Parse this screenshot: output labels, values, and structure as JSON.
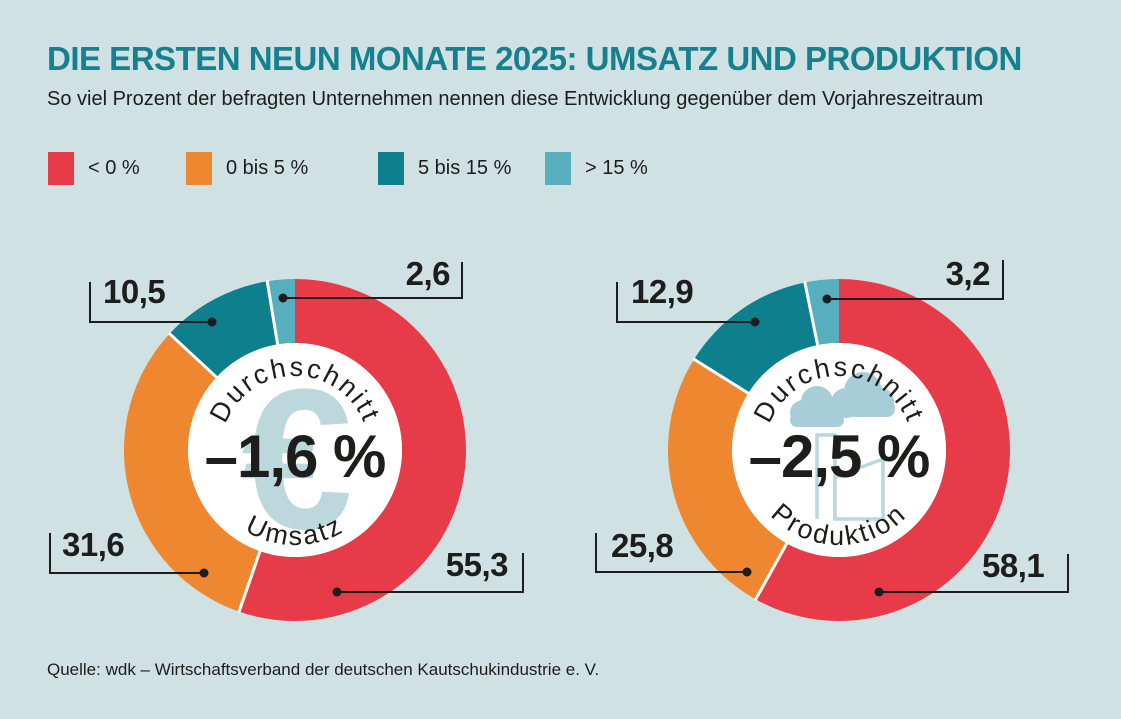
{
  "title": "DIE ERSTEN NEUN MONATE 2025: UMSATZ UND PRODUKTION",
  "subtitle": "So viel Prozent der befragten Unternehmen nennen diese Entwicklung gegenüber dem Vorjahreszeitraum",
  "source": "Quelle: wdk – Wirtschaftsverband der deutschen Kautschukindustrie e. V.",
  "colors": {
    "background": "#cfe1e3",
    "title": "#17808e",
    "text": "#1d1d1b",
    "euro_icon": "#bdd8dc",
    "cloud_fill": "#a7ced8",
    "factory_stroke": "#b9d8de"
  },
  "legend": [
    {
      "label": "< 0 %",
      "color": "#e83b49"
    },
    {
      "label": "0 bis 5 %",
      "color": "#ef8730"
    },
    {
      "label": "5 bis 15 %",
      "color": "#0e7f8c"
    },
    {
      "label": "> 15 %",
      "color": "#57aebc"
    }
  ],
  "chart_data": [
    {
      "type": "donut",
      "name": "Umsatz",
      "units": "%",
      "start_angle_deg": 0,
      "direction": "clockwise",
      "categories": [
        "< 0 %",
        "0 bis 5 %",
        "5 bis 15 %",
        "> 15 %"
      ],
      "values": [
        55.3,
        31.6,
        10.5,
        2.6
      ],
      "value_labels": [
        "55,3",
        "31,6",
        "10,5",
        "2,6"
      ],
      "colors": [
        "#e83b49",
        "#ef8730",
        "#0e7f8c",
        "#57aebc"
      ],
      "center_top_label": "Durchschnitt",
      "center_value": "–1,6 %",
      "center_bottom_label": "Umsatz",
      "icon": "euro"
    },
    {
      "type": "donut",
      "name": "Produktion",
      "units": "%",
      "start_angle_deg": 0,
      "direction": "clockwise",
      "categories": [
        "< 0 %",
        "0 bis 5 %",
        "5 bis 15 %",
        "> 15 %"
      ],
      "values": [
        58.1,
        25.8,
        12.9,
        3.2
      ],
      "value_labels": [
        "58,1",
        "25,8",
        "12,9",
        "3,2"
      ],
      "colors": [
        "#e83b49",
        "#ef8730",
        "#0e7f8c",
        "#57aebc"
      ],
      "center_top_label": "Durchschnitt",
      "center_value": "–2,5 %",
      "center_bottom_label": "Produktion",
      "icon": "factory"
    }
  ]
}
